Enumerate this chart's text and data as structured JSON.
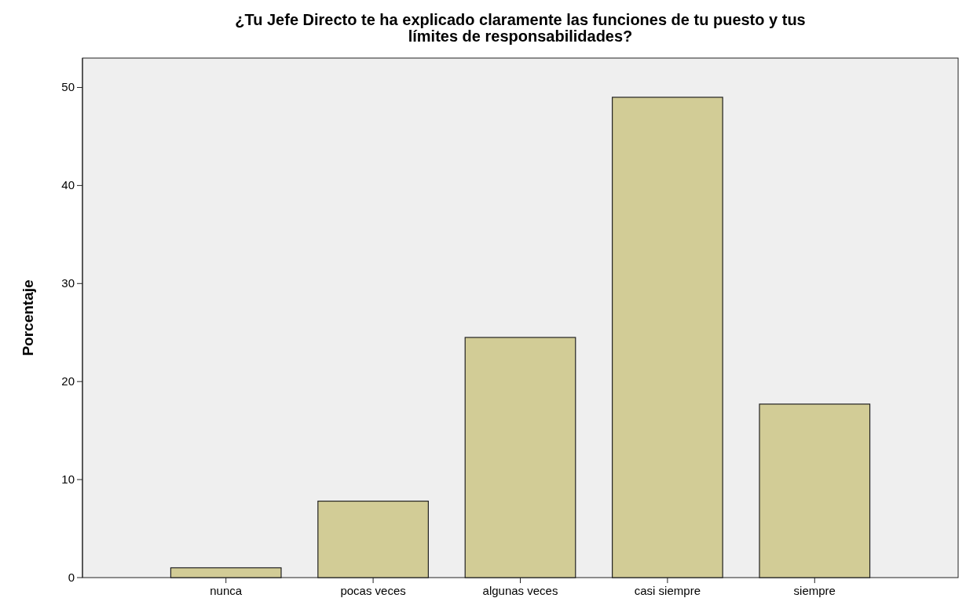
{
  "chart_data": {
    "type": "bar",
    "title": "¿Tu Jefe Directo te ha explicado claramente las funciones de tu puesto y tus límites de responsabilidades?",
    "ylabel": "Porcentaje",
    "categories": [
      "nunca",
      "pocas veces",
      "algunas veces",
      "casi siempre",
      "siempre"
    ],
    "values": [
      1.0,
      7.8,
      24.5,
      49.0,
      17.7
    ],
    "color": "#d2cc96",
    "ylim": [
      0,
      53
    ],
    "yticks": [
      0,
      10,
      20,
      30,
      40,
      50
    ],
    "grid": false
  }
}
